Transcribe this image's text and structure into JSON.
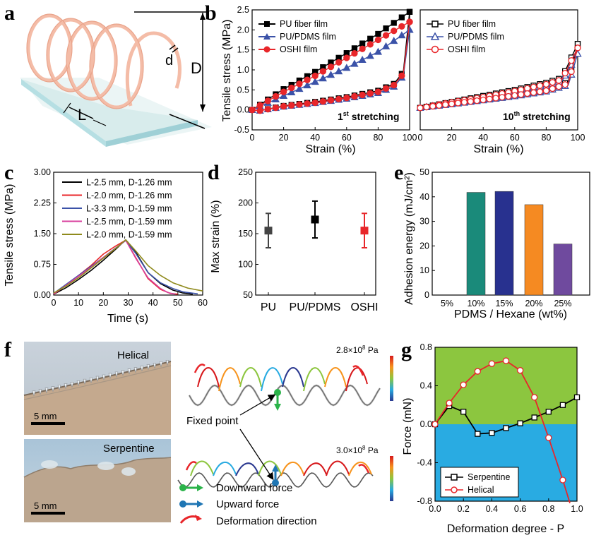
{
  "panel_labels": {
    "a": "a",
    "b": "b",
    "c": "c",
    "d": "d",
    "e": "e",
    "f": "f",
    "g": "g"
  },
  "panel_a": {
    "label_d": "d",
    "label_D": "D",
    "label_L": "L"
  },
  "colors": {
    "black": "#000000",
    "blue": "#3b52a8",
    "red": "#e8262a",
    "teal": "#1a8a7a",
    "navy": "#28318f",
    "orange": "#f58a22",
    "purple": "#6f4a9e",
    "olive": "#8f8a1c",
    "magenta": "#d83f9c",
    "green_bg": "#8cc63f",
    "blue_bg": "#29abe2"
  },
  "chart_data": [
    {
      "id": "b1",
      "type": "line",
      "title": "1st stretching",
      "title_main": "1",
      "title_sup": "st",
      "title_rest": " stretching",
      "xlabel": "Strain (%)",
      "ylabel": "Tensile stress (MPa)",
      "xlim": [
        0,
        100
      ],
      "ylim": [
        -0.5,
        2.5
      ],
      "xticks": [
        "0",
        "20",
        "40",
        "60",
        "80",
        "100"
      ],
      "yticks": [
        "-0.5",
        "0.0",
        "0.5",
        "1.0",
        "1.5",
        "2.0",
        "2.5"
      ],
      "series": [
        {
          "name": "PU fiber film",
          "marker": "square-filled",
          "load_x": [
            0,
            20,
            40,
            60,
            80,
            100
          ],
          "load_y": [
            0,
            0.52,
            0.95,
            1.42,
            1.9,
            2.45
          ],
          "unload_x": [
            100,
            96,
            90,
            80,
            60,
            40,
            20,
            5,
            0
          ],
          "unload_y": [
            2.45,
            0.95,
            0.65,
            0.48,
            0.32,
            0.2,
            0.1,
            -0.02,
            0
          ]
        },
        {
          "name": "PU/PDMS film",
          "marker": "triangle-filled",
          "load_x": [
            0,
            20,
            40,
            60,
            80,
            100
          ],
          "load_y": [
            0,
            0.35,
            0.7,
            1.05,
            1.45,
            2.0
          ],
          "unload_x": [
            100,
            96,
            90,
            80,
            60,
            40,
            20,
            5,
            0
          ],
          "unload_y": [
            2.0,
            0.85,
            0.58,
            0.42,
            0.28,
            0.17,
            0.08,
            -0.02,
            0
          ]
        },
        {
          "name": "OSHI film",
          "marker": "circle-filled",
          "load_x": [
            0,
            20,
            40,
            60,
            80,
            100
          ],
          "load_y": [
            0,
            0.45,
            0.85,
            1.3,
            1.75,
            2.2
          ],
          "unload_x": [
            100,
            96,
            90,
            80,
            60,
            40,
            20,
            5,
            0
          ],
          "unload_y": [
            2.2,
            0.9,
            0.62,
            0.45,
            0.3,
            0.18,
            0.09,
            -0.02,
            0
          ]
        }
      ]
    },
    {
      "id": "b2",
      "type": "line",
      "title": "10th stretching",
      "title_main": "10",
      "title_sup": "th",
      "title_rest": " stretching",
      "xlabel": "Strain (%)",
      "xlim": [
        0,
        100
      ],
      "ylim": [
        -0.5,
        2.5
      ],
      "xticks": [
        "0",
        "20",
        "40",
        "60",
        "80",
        "100"
      ],
      "series": [
        {
          "name": "PU fiber film",
          "marker": "square-open",
          "load_x": [
            0,
            20,
            40,
            60,
            80,
            90,
            100
          ],
          "load_y": [
            0.05,
            0.2,
            0.35,
            0.5,
            0.68,
            0.8,
            1.65
          ],
          "unload_x": [
            100,
            94,
            80,
            60,
            40,
            20,
            0
          ],
          "unload_y": [
            1.65,
            0.7,
            0.5,
            0.38,
            0.26,
            0.15,
            0.05
          ]
        },
        {
          "name": "PU/PDMS film",
          "marker": "triangle-open",
          "load_x": [
            0,
            20,
            40,
            60,
            80,
            90,
            100
          ],
          "load_y": [
            0.05,
            0.18,
            0.3,
            0.44,
            0.6,
            0.72,
            1.4
          ],
          "unload_x": [
            100,
            94,
            80,
            60,
            40,
            20,
            0
          ],
          "unload_y": [
            1.4,
            0.62,
            0.46,
            0.34,
            0.24,
            0.14,
            0.05
          ]
        },
        {
          "name": "OSHI film",
          "marker": "circle-open",
          "load_x": [
            0,
            20,
            40,
            60,
            80,
            90,
            100
          ],
          "load_y": [
            0.05,
            0.19,
            0.32,
            0.47,
            0.64,
            0.76,
            1.55
          ],
          "unload_x": [
            100,
            94,
            80,
            60,
            40,
            20,
            0
          ],
          "unload_y": [
            1.55,
            0.66,
            0.48,
            0.36,
            0.25,
            0.15,
            0.05
          ]
        }
      ]
    },
    {
      "id": "c",
      "type": "line",
      "xlabel": "Time (s)",
      "ylabel": "Tensile stress (MPa)",
      "xlim": [
        0,
        60
      ],
      "ylim": [
        0,
        3.0
      ],
      "xticks": [
        "0",
        "10",
        "20",
        "30",
        "40",
        "50",
        "60"
      ],
      "yticks": [
        "0.00",
        "0.75",
        "1.50",
        "2.25",
        "3.00"
      ],
      "series": [
        {
          "name": "L-2.5 mm, D-1.26 mm",
          "x": [
            0,
            5,
            10,
            15,
            20,
            25,
            29,
            33,
            38,
            43,
            48,
            52,
            56
          ],
          "y": [
            0.02,
            0.18,
            0.38,
            0.6,
            0.85,
            1.12,
            1.35,
            1.05,
            0.55,
            0.28,
            0.12,
            0.05,
            0.02
          ]
        },
        {
          "name": "L-2.0 mm, D-1.26 mm",
          "x": [
            0,
            5,
            10,
            15,
            20,
            25,
            29,
            33,
            38,
            43,
            47,
            50
          ],
          "y": [
            0.02,
            0.24,
            0.48,
            0.72,
            1.0,
            1.2,
            1.34,
            0.92,
            0.4,
            0.14,
            0.04,
            0.02
          ]
        },
        {
          "name": "L-3.3 mm, D-1.59 mm",
          "x": [
            0,
            5,
            10,
            15,
            20,
            25,
            29,
            33,
            38,
            43,
            48,
            52,
            58
          ],
          "y": [
            0.04,
            0.26,
            0.48,
            0.7,
            0.92,
            1.15,
            1.33,
            1.02,
            0.55,
            0.3,
            0.16,
            0.08,
            0.03
          ]
        },
        {
          "name": "L-2.5 mm, D-1.59 mm",
          "x": [
            0,
            5,
            10,
            15,
            20,
            25,
            29,
            33,
            38,
            43,
            46,
            49
          ],
          "y": [
            0.03,
            0.24,
            0.46,
            0.68,
            0.92,
            1.14,
            1.34,
            0.9,
            0.42,
            0.16,
            0.06,
            0.02
          ]
        },
        {
          "name": "L-2.0 mm, D-1.59 mm",
          "x": [
            0,
            5,
            10,
            15,
            20,
            25,
            29,
            33,
            38,
            43,
            48,
            54,
            60
          ],
          "y": [
            0.05,
            0.22,
            0.42,
            0.66,
            0.9,
            1.14,
            1.35,
            1.08,
            0.72,
            0.48,
            0.3,
            0.17,
            0.1
          ]
        }
      ]
    },
    {
      "id": "d",
      "type": "scatter",
      "ylabel": "Max strain (%)",
      "categories": [
        "PU",
        "PU/PDMS",
        "OSHI"
      ],
      "values": [
        155,
        173,
        155
      ],
      "errors": [
        28,
        30,
        28
      ],
      "ylim": [
        50,
        250
      ],
      "yticks": [
        "50",
        "100",
        "150",
        "200",
        "250"
      ]
    },
    {
      "id": "e",
      "type": "bar",
      "xlabel": "PDMS / Hexane (wt%)",
      "ylabel": "Adhesion energy (mJ/cm²)",
      "categories": [
        "5%",
        "10%",
        "15%",
        "20%",
        "25%"
      ],
      "values": [
        0,
        41.8,
        42.2,
        36.8,
        20.8
      ],
      "ylim": [
        0,
        50
      ],
      "yticks": [
        "0",
        "10",
        "20",
        "30",
        "40",
        "50"
      ]
    },
    {
      "id": "g",
      "type": "line",
      "xlabel": "Deformation degree - P",
      "ylabel": "Force (mN)",
      "xlim": [
        0,
        1.0
      ],
      "ylim": [
        -0.8,
        0.8
      ],
      "xticks": [
        "0.0",
        "0.2",
        "0.4",
        "0.6",
        "0.8",
        "1.0"
      ],
      "yticks": [
        "-0.8",
        "-0.4",
        "0.0",
        "0.4",
        "0.8"
      ],
      "series": [
        {
          "name": "Serpentine",
          "marker": "square-open",
          "x": [
            0,
            0.1,
            0.2,
            0.3,
            0.4,
            0.5,
            0.6,
            0.7,
            0.8,
            0.9,
            1.0
          ],
          "y": [
            0,
            0.19,
            0.13,
            -0.1,
            -0.09,
            -0.04,
            0.01,
            0.07,
            0.13,
            0.2,
            0.28
          ]
        },
        {
          "name": "Helical",
          "marker": "circle-open",
          "x": [
            0,
            0.1,
            0.2,
            0.3,
            0.4,
            0.5,
            0.6,
            0.7,
            0.8,
            0.9,
            0.95
          ],
          "y": [
            0,
            0.22,
            0.41,
            0.55,
            0.63,
            0.66,
            0.56,
            0.28,
            -0.14,
            -0.58,
            -0.82
          ]
        }
      ]
    }
  ],
  "panel_f": {
    "photo_top_label": "Helical",
    "photo_bottom_label": "Serpentine",
    "scale_top": "5 mm",
    "scale_bottom": "5 mm",
    "colorbar_top_base": "2.8×10",
    "colorbar_top_exp": "8",
    "colorbar_top_unit": " Pa",
    "colorbar_bottom_base": "3.0×10",
    "colorbar_bottom_exp": "8",
    "colorbar_bottom_unit": " Pa",
    "fixed_point": "Fixed point",
    "legend_downward": "Downward force",
    "legend_upward": "Upward force",
    "legend_deformation": "Deformation direction"
  }
}
